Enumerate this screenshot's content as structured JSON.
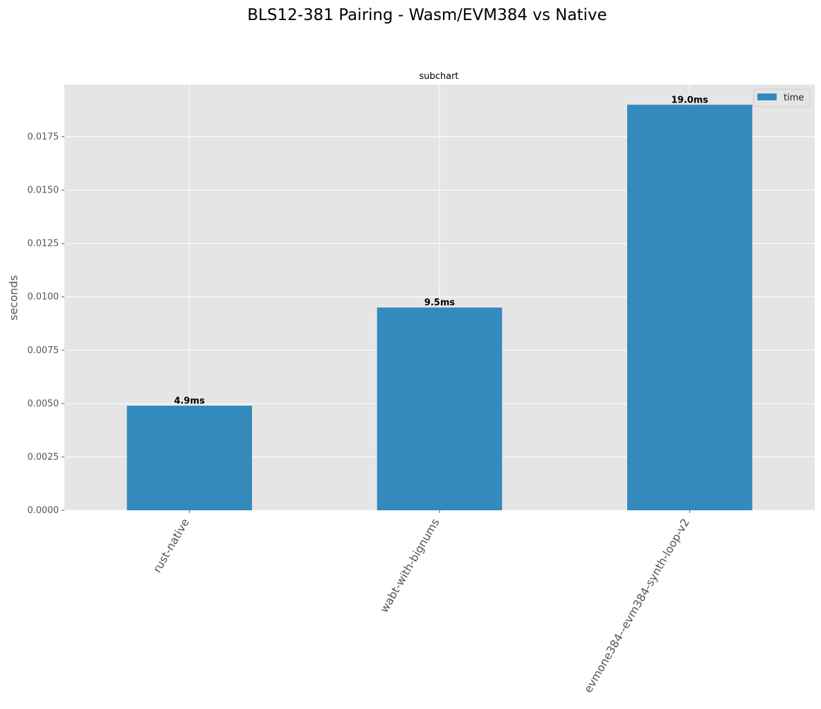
{
  "chart_data": {
    "type": "bar",
    "title": "BLS12-381 Pairing - Wasm/EVM384 vs Native",
    "subtitle": "subchart",
    "xlabel": "",
    "ylabel": "seconds",
    "categories": [
      "rust-native",
      "wabt-with-bignums",
      "evmone384--evm384-synth-loop-v2"
    ],
    "series": [
      {
        "name": "time",
        "values": [
          0.0049,
          0.0095,
          0.019
        ]
      }
    ],
    "data_labels": [
      "4.9ms",
      "9.5ms",
      "19.0ms"
    ],
    "ylim": [
      0,
      0.01995
    ],
    "yticks": [
      0.0,
      0.0025,
      0.005,
      0.0075,
      0.01,
      0.0125,
      0.015,
      0.0175
    ],
    "ytick_labels": [
      "0.0000",
      "0.0025",
      "0.0050",
      "0.0075",
      "0.0100",
      "0.0125",
      "0.0150",
      "0.0175"
    ],
    "grid": true,
    "legend_position": "top-right",
    "colors": {
      "bar": "#348abd",
      "plot_bg": "#e5e5e5",
      "grid": "#ffffff"
    }
  }
}
